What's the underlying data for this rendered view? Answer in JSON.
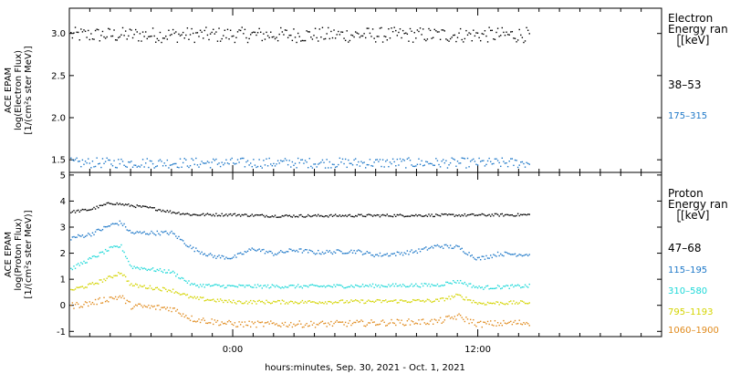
{
  "chart_data": [
    {
      "type": "scatter",
      "name": "electron",
      "ylabel_lines": [
        "ACE EPAM",
        "log(Electron Flux)",
        "[1/(cm²s ster MeV)]"
      ],
      "yticks": [
        "1.5",
        "2.0",
        "2.5",
        "3.0"
      ],
      "ylim": [
        1.35,
        3.3
      ],
      "legend": {
        "title_lines": [
          "Electron",
          "Energy ran",
          "[keV]"
        ],
        "placement": "right"
      },
      "series": [
        {
          "name": "38–53",
          "color": "#000000",
          "base": 2.99,
          "spread": 0.09,
          "profile": [
            [
              0,
              2.99
            ],
            [
              24,
              2.99
            ]
          ]
        },
        {
          "name": "175–315",
          "color": "#1e78c8",
          "base": 1.47,
          "spread": 0.06,
          "profile": [
            [
              0,
              1.47
            ],
            [
              24,
              1.47
            ]
          ]
        }
      ]
    },
    {
      "type": "scatter",
      "name": "proton",
      "ylabel_lines": [
        "ACE EPAM",
        "log(Proton Flux)",
        "[1/(cm²s ster MeV)]"
      ],
      "yticks": [
        "-1",
        "0",
        "1",
        "2",
        "3",
        "4",
        "5"
      ],
      "ylim": [
        -1.2,
        5.1
      ],
      "legend": {
        "title_lines": [
          "Proton",
          "Energy ran",
          "[keV]"
        ],
        "placement": "right"
      },
      "series": [
        {
          "name": "47–68",
          "color": "#000000",
          "spread": 0.05,
          "profile": [
            [
              0,
              3.6
            ],
            [
              1,
              3.7
            ],
            [
              2,
              3.95
            ],
            [
              3,
              3.85
            ],
            [
              4,
              3.75
            ],
            [
              5,
              3.6
            ],
            [
              6,
              3.5
            ],
            [
              8,
              3.5
            ],
            [
              10,
              3.45
            ],
            [
              24,
              3.5
            ]
          ]
        },
        {
          "name": "115–195",
          "color": "#1e78c8",
          "spread": 0.08,
          "profile": [
            [
              0,
              2.6
            ],
            [
              1,
              2.75
            ],
            [
              2,
              3.1
            ],
            [
              2.5,
              3.2
            ],
            [
              3,
              2.8
            ],
            [
              5,
              2.8
            ],
            [
              6,
              2.2
            ],
            [
              7,
              1.9
            ],
            [
              8,
              1.85
            ],
            [
              9,
              2.2
            ],
            [
              10,
              2.0
            ],
            [
              11,
              2.15
            ],
            [
              12,
              2.05
            ],
            [
              14,
              2.1
            ],
            [
              15,
              1.95
            ],
            [
              16,
              2.0
            ],
            [
              17,
              2.1
            ],
            [
              18,
              2.3
            ],
            [
              19,
              2.25
            ],
            [
              20,
              1.8
            ],
            [
              21,
              2.0
            ],
            [
              24,
              1.95
            ]
          ]
        },
        {
          "name": "310–580",
          "color": "#1cd8d8",
          "spread": 0.07,
          "profile": [
            [
              0,
              1.4
            ],
            [
              1,
              1.8
            ],
            [
              2,
              2.2
            ],
            [
              2.5,
              2.3
            ],
            [
              3,
              1.5
            ],
            [
              5,
              1.3
            ],
            [
              6,
              0.8
            ],
            [
              8,
              0.75
            ],
            [
              12,
              0.75
            ],
            [
              18,
              0.8
            ],
            [
              19,
              0.95
            ],
            [
              20,
              0.7
            ],
            [
              24,
              0.8
            ]
          ]
        },
        {
          "name": "795–1193",
          "color": "#d4d400",
          "spread": 0.07,
          "profile": [
            [
              0,
              0.6
            ],
            [
              1,
              0.8
            ],
            [
              2,
              1.1
            ],
            [
              2.5,
              1.3
            ],
            [
              3,
              0.8
            ],
            [
              5,
              0.6
            ],
            [
              6,
              0.3
            ],
            [
              8,
              0.15
            ],
            [
              12,
              0.15
            ],
            [
              18,
              0.2
            ],
            [
              19,
              0.4
            ],
            [
              20,
              0.1
            ],
            [
              24,
              0.15
            ]
          ]
        },
        {
          "name": "1060–1900",
          "color": "#e08a1c",
          "spread": 0.12,
          "profile": [
            [
              0,
              0.0
            ],
            [
              1,
              0.1
            ],
            [
              2,
              0.3
            ],
            [
              2.5,
              0.35
            ],
            [
              3,
              0.0
            ],
            [
              5,
              -0.1
            ],
            [
              6,
              -0.5
            ],
            [
              8,
              -0.7
            ],
            [
              12,
              -0.7
            ],
            [
              18,
              -0.6
            ],
            [
              19,
              -0.4
            ],
            [
              20,
              -0.7
            ],
            [
              24,
              -0.6
            ]
          ]
        }
      ]
    }
  ],
  "xaxis": {
    "xlabel": "hours:minutes, Sep. 30, 2021 - Oct. 1, 2021",
    "ticks": [
      {
        "hour": 0,
        "label": "0:00"
      },
      {
        "hour": 12,
        "label": "12:00"
      }
    ],
    "xlim_hours": [
      -8,
      21
    ],
    "data_end_hour": 14.5
  }
}
